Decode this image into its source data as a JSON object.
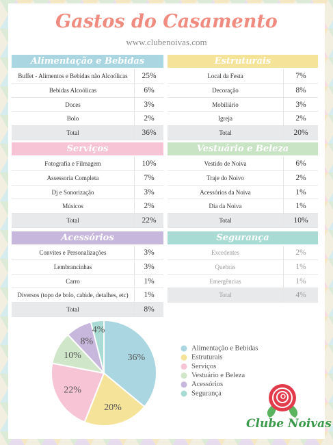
{
  "header": {
    "title": "Gastos do Casamento",
    "subtitle": "www.clubenoivas.com"
  },
  "sections": [
    {
      "title": "Alimentação e Bebidas",
      "color": "#a9d6e0",
      "rows": [
        [
          "Buffet - Alimentos e Bebidas não Alcoólicas",
          "25%"
        ],
        [
          "Bebidas Alcoólicas",
          "6%"
        ],
        [
          "Doces",
          "3%"
        ],
        [
          "Bolo",
          "2%"
        ]
      ],
      "total": [
        "Total",
        "36%"
      ]
    },
    {
      "title": "Estruturais",
      "color": "#f5e39a",
      "rows": [
        [
          "Local da Festa",
          "7%"
        ],
        [
          "Decoração",
          "8%"
        ],
        [
          "Mobiliário",
          "3%"
        ],
        [
          "Igreja",
          "2%"
        ]
      ],
      "total": [
        "Total",
        "20%"
      ]
    },
    {
      "title": "Serviços",
      "color": "#f7c4d6",
      "rows": [
        [
          "Fotografia e Filmagem",
          "10%"
        ],
        [
          "Assessoria Completa",
          "7%"
        ],
        [
          "Dj e Sonorização",
          "3%"
        ],
        [
          "Músicos",
          "2%"
        ]
      ],
      "total": [
        "Total",
        "22%"
      ]
    },
    {
      "title": "Vestuário e Beleza",
      "color": "#c9e3c5",
      "rows": [
        [
          "Vestido de Noiva",
          "6%"
        ],
        [
          "Traje do Noivo",
          "2%"
        ],
        [
          "Acessórios da Noiva",
          "1%"
        ],
        [
          "Dia da Noiva",
          "1%"
        ]
      ],
      "total": [
        "Total",
        "10%"
      ]
    },
    {
      "title": "Acessórios",
      "color": "#c8b7dc",
      "rows": [
        [
          "Convites e Personalizações",
          "3%"
        ],
        [
          "Lembrancinhas",
          "3%"
        ],
        [
          "Carro",
          "1%"
        ],
        [
          "Diversos (topo de bolo, cabide, detalhes, etc)",
          "1%"
        ]
      ],
      "total": [
        "Total",
        "8%"
      ]
    },
    {
      "title": "Segurança",
      "color": "#a8dbd3",
      "rows": [
        [
          "Excedentes",
          "2%"
        ],
        [
          "Quebras",
          "1%"
        ],
        [
          "Emergências",
          "1%"
        ]
      ],
      "total": [
        "Total",
        "4%"
      ]
    }
  ],
  "chart_data": {
    "type": "pie",
    "categories": [
      "Alimentação e Bebidas",
      "Estruturais",
      "Serviços",
      "Vestuário e Beleza",
      "Acessórios",
      "Segurança"
    ],
    "values": [
      36,
      20,
      22,
      10,
      8,
      4
    ],
    "value_labels": [
      "36%",
      "20%",
      "22%",
      "10%",
      "8%",
      "4%"
    ],
    "colors": [
      "#a9d6e0",
      "#f5e39a",
      "#f7c4d6",
      "#cfe6c9",
      "#c8b7dc",
      "#a8dbd3"
    ],
    "legend": "right"
  },
  "logo": "Clube Noivas"
}
